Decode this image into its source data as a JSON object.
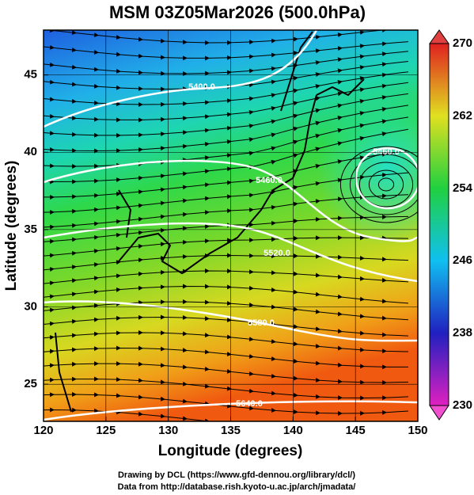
{
  "chart_data": {
    "type": "map",
    "title": "MSM 03Z05Mar2026 (500.0hPa)",
    "x_label": "Longitude (degrees)",
    "y_label": "Latitude  (degrees)",
    "xlim": [
      120,
      150
    ],
    "ylim": [
      22.6,
      47.9
    ],
    "xticks": [
      120,
      125,
      130,
      135,
      140,
      145,
      150
    ],
    "yticks": [
      25,
      30,
      35,
      40,
      45
    ],
    "colorbar": {
      "clim": [
        230,
        270
      ],
      "ticks": [
        230,
        238,
        246,
        254,
        262,
        270
      ]
    },
    "contours": [
      {
        "value": 5400,
        "label": "5400.0"
      },
      {
        "value": 5460,
        "label": "5460.0"
      },
      {
        "value": 5520,
        "label": "5520.0"
      },
      {
        "value": 5580,
        "label": "5580.0"
      },
      {
        "value": 5640,
        "label": "5640.0"
      },
      {
        "value": 5460,
        "label": "5460.0"
      }
    ],
    "footer": [
      "Drawing by DCL (https://www.gfd-dennou.org/library/dcl/)",
      "Data from http://database.rish.kyoto-u.ac.jp/arch/jmadata/"
    ]
  }
}
